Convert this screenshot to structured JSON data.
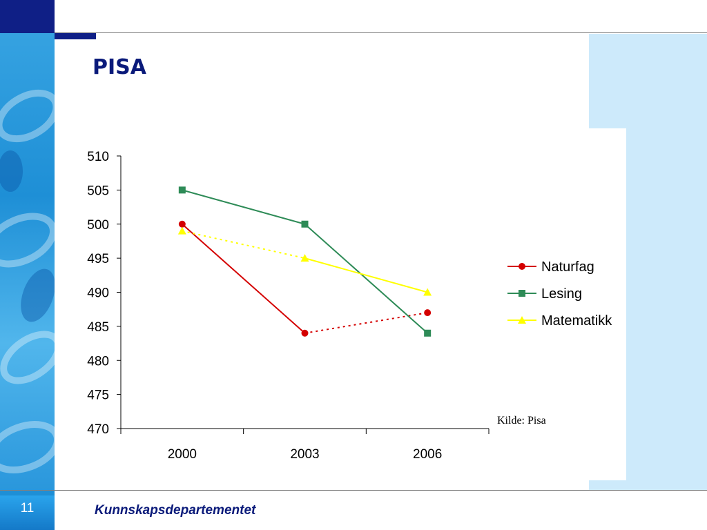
{
  "slide": {
    "title": "PISA",
    "source": "Kilde: Pisa",
    "page_number": "11",
    "organization": "Kunnskapsdepartementet"
  },
  "colors": {
    "navy": "#0f1f86",
    "title_color": "#0a1a7a",
    "panel_light_blue": "#cdeafb",
    "band_blue": "#1e8fd6"
  },
  "chart_data": {
    "type": "line",
    "categories": [
      "2000",
      "2003",
      "2006"
    ],
    "ylim": [
      470,
      510
    ],
    "yticks": [
      470,
      475,
      480,
      485,
      490,
      495,
      500,
      505,
      510
    ],
    "legend_position": "right",
    "grid": false,
    "series": [
      {
        "name": "Naturfag",
        "values": [
          500,
          484,
          487
        ],
        "color": "#d40000",
        "marker": "circle",
        "line_styles": [
          "solid",
          "dotted"
        ]
      },
      {
        "name": "Lesing",
        "values": [
          505,
          500,
          484
        ],
        "color": "#2e8b57",
        "marker": "square",
        "line_styles": [
          "solid",
          "solid"
        ]
      },
      {
        "name": "Matematikk",
        "values": [
          499,
          495,
          490
        ],
        "color": "#ffff00",
        "marker": "triangle",
        "line_styles": [
          "dotted",
          "solid"
        ]
      }
    ]
  }
}
